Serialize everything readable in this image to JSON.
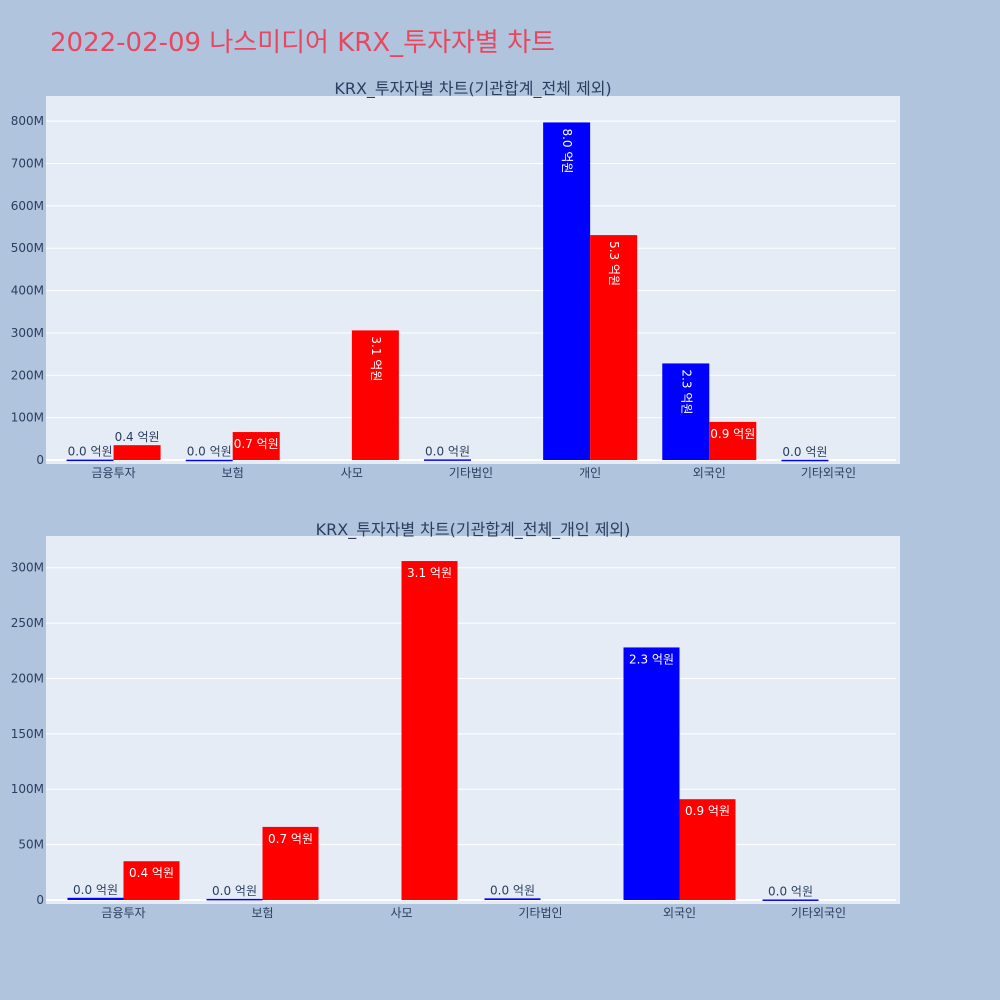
{
  "page_title": "2022-02-09 나스미디어 KRX_투자자별 차트",
  "colors": {
    "buy": "#0000ff",
    "sell": "#ff0000",
    "plot_bg": "#e5ecf6",
    "page_bg": "#b0c4de",
    "title": "#e8475f"
  },
  "chart_data": [
    {
      "type": "bar",
      "title": "KRX_투자자별 차트(기관합계_전체 제외)",
      "categories": [
        "금융투자",
        "보험",
        "사모",
        "기타법인",
        "개인",
        "외국인",
        "기타외국인"
      ],
      "series": [
        {
          "color": "#0000ff",
          "values": [
            1000000,
            600000,
            0,
            1500000,
            797000000,
            228000000,
            500000
          ],
          "labels": [
            "0.0 억원",
            "0.0 억원",
            "",
            "0.0 억원",
            "8.0 억원",
            "2.3 억원",
            "0.0 억원"
          ]
        },
        {
          "color": "#ff0000",
          "values": [
            35000000,
            66000000,
            306000000,
            0,
            531000000,
            90000000,
            0
          ],
          "labels": [
            "0.4 억원",
            "0.7 억원",
            "3.1 억원",
            "",
            "5.3 억원",
            "0.9 억원",
            ""
          ]
        }
      ],
      "ylim": [
        0,
        850000000
      ],
      "yticks": [
        0,
        100000000,
        200000000,
        300000000,
        400000000,
        500000000,
        600000000,
        700000000,
        800000000
      ],
      "yticklabels": [
        "0",
        "100M",
        "200M",
        "300M",
        "400M",
        "500M",
        "600M",
        "700M",
        "800M"
      ],
      "grid": true
    },
    {
      "type": "bar",
      "title": "KRX_투자자별 차트(기관합계_전체_개인 제외)",
      "categories": [
        "금융투자",
        "보험",
        "사모",
        "기타법인",
        "외국인",
        "기타외국인"
      ],
      "series": [
        {
          "color": "#0000ff",
          "values": [
            2000000,
            1000000,
            0,
            1500000,
            228000000,
            500000
          ],
          "labels": [
            "0.0 억원",
            "0.0 억원",
            "",
            "0.0 억원",
            "2.3 억원",
            "0.0 억원"
          ]
        },
        {
          "color": "#ff0000",
          "values": [
            35000000,
            66000000,
            306000000,
            0,
            91000000,
            0
          ],
          "labels": [
            "0.4 억원",
            "0.7 억원",
            "3.1 억원",
            "",
            "0.9 억원",
            ""
          ]
        }
      ],
      "ylim": [
        0,
        325000000
      ],
      "yticks": [
        0,
        50000000,
        100000000,
        150000000,
        200000000,
        250000000,
        300000000
      ],
      "yticklabels": [
        "0",
        "50M",
        "100M",
        "150M",
        "200M",
        "250M",
        "300M"
      ],
      "grid": true
    }
  ]
}
